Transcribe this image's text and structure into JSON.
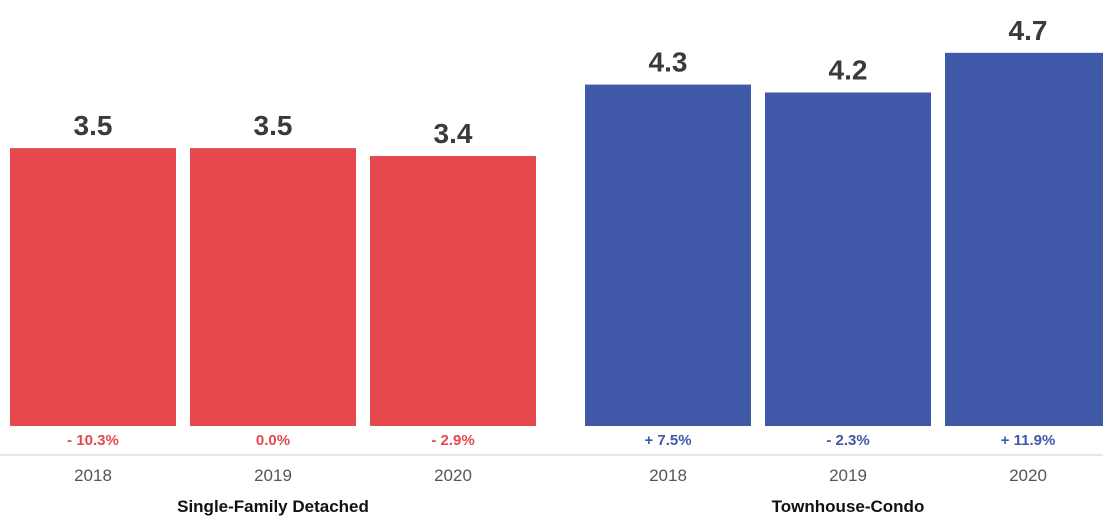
{
  "chart_data": {
    "type": "bar",
    "ylim": [
      0,
      5.2
    ],
    "grid": false,
    "legend": "none",
    "groups": [
      {
        "name": "Single-Family Detached",
        "color": "#e5484d",
        "categories": [
          "2018",
          "2019",
          "2020"
        ],
        "values": [
          3.5,
          3.5,
          3.4
        ],
        "value_labels": [
          "3.5",
          "3.5",
          "3.4"
        ],
        "changes": [
          "- 10.3%",
          "0.0%",
          "- 2.9%"
        ]
      },
      {
        "name": "Townhouse-Condo",
        "color": "#3f59a8",
        "categories": [
          "2018",
          "2019",
          "2020"
        ],
        "values": [
          4.3,
          4.2,
          4.7
        ],
        "value_labels": [
          "4.3",
          "4.2",
          "4.7"
        ],
        "changes": [
          "+ 7.5%",
          "- 2.3%",
          "+ 11.9%"
        ]
      }
    ]
  }
}
